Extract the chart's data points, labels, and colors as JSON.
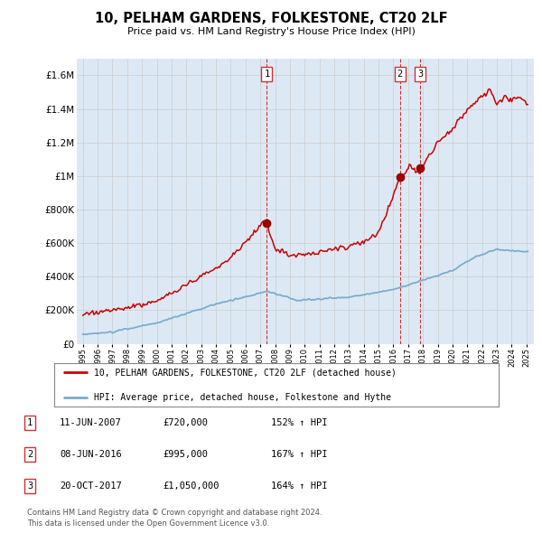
{
  "title": "10, PELHAM GARDENS, FOLKESTONE, CT20 2LF",
  "subtitle": "Price paid vs. HM Land Registry's House Price Index (HPI)",
  "bg_color": "#dce9f5",
  "ylim": [
    0,
    1700000
  ],
  "yticks": [
    0,
    200000,
    400000,
    600000,
    800000,
    1000000,
    1200000,
    1400000,
    1600000
  ],
  "ytick_labels": [
    "£0",
    "£200K",
    "£400K",
    "£600K",
    "£800K",
    "£1M",
    "£1.2M",
    "£1.4M",
    "£1.6M"
  ],
  "legend_line1": "10, PELHAM GARDENS, FOLKESTONE, CT20 2LF (detached house)",
  "legend_line2": "HPI: Average price, detached house, Folkestone and Hythe",
  "line1_color": "#cc0000",
  "line2_color": "#7aadcc",
  "marker_color": "#990000",
  "vline_color": "#cc3333",
  "sale_dates": [
    2007.44,
    2016.44,
    2017.8
  ],
  "sale_prices": [
    720000,
    995000,
    1050000
  ],
  "sale_labels": [
    "1",
    "2",
    "3"
  ],
  "table_rows": [
    {
      "num": "1",
      "date": "11-JUN-2007",
      "price": "£720,000",
      "hpi": "152% ↑ HPI"
    },
    {
      "num": "2",
      "date": "08-JUN-2016",
      "price": "£995,000",
      "hpi": "167% ↑ HPI"
    },
    {
      "num": "3",
      "date": "20-OCT-2017",
      "price": "£1,050,000",
      "hpi": "164% ↑ HPI"
    }
  ],
  "footnote1": "Contains HM Land Registry data © Crown copyright and database right 2024.",
  "footnote2": "This data is licensed under the Open Government Licence v3.0."
}
